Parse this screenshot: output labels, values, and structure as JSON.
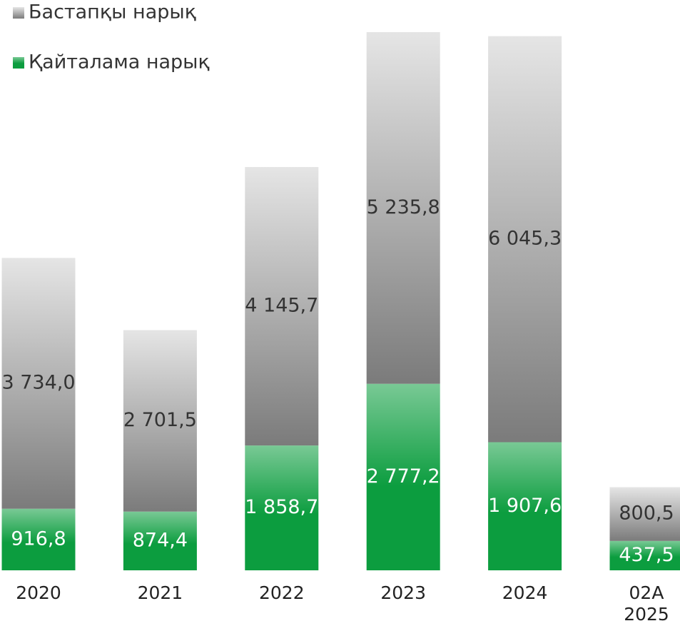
{
  "chart_data": {
    "type": "stacked_bar",
    "categories": [
      "2020",
      "2021",
      "2022",
      "2023",
      "2024",
      "02А 2025"
    ],
    "series": [
      {
        "name": "Қайталама нарық",
        "color": "#0c9d3f",
        "label_color": "#ffffff",
        "values": [
          916.8,
          874.4,
          1858.7,
          2777.2,
          1907.6,
          437.5
        ],
        "value_labels": [
          "916,8",
          "874,4",
          "1 858,7",
          "2 777,2",
          "1 907,6",
          "437,5"
        ]
      },
      {
        "name": "Бастапқы нарық",
        "color": "#7b7b7b",
        "label_color": "#333333",
        "values": [
          3734.0,
          2701.5,
          4145.7,
          5235.8,
          6045.3,
          800.5
        ],
        "value_labels": [
          "3 734,0",
          "2 701,5",
          "4 145,7",
          "5 235,8",
          "6 045,3",
          "800,5"
        ]
      }
    ],
    "legend": "top-left"
  }
}
